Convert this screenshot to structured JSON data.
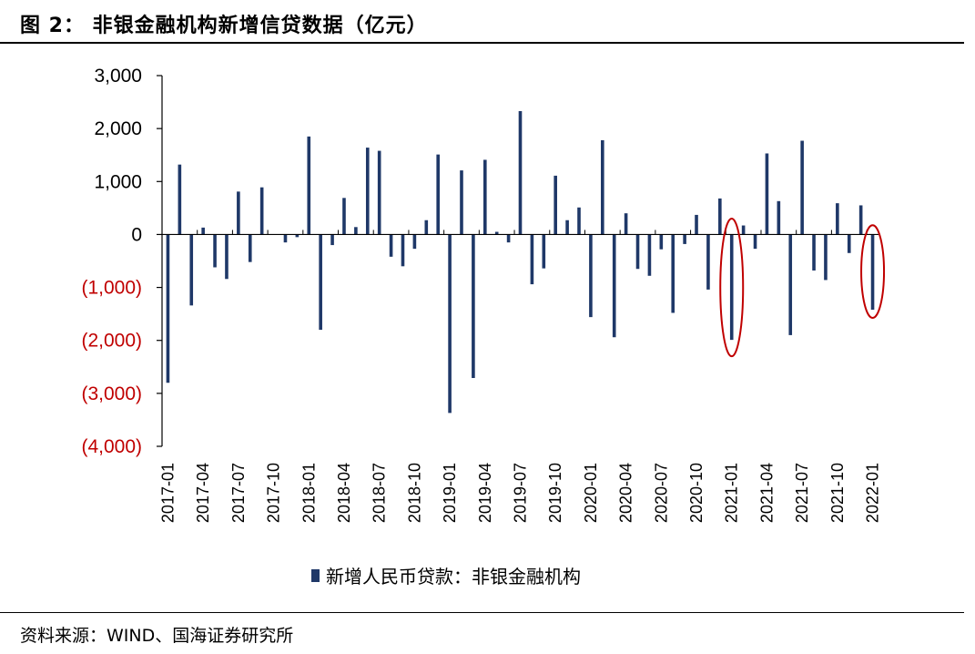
{
  "header": {
    "title": "图 2：  非银金融机构新增信贷数据（亿元）"
  },
  "footer": {
    "source": "资料来源：WIND、国海证券研究所"
  },
  "colors": {
    "bar": "#1f3868",
    "negative_label": "#c00000",
    "highlight": "#c00000",
    "axis": "#000000"
  },
  "chart_data": {
    "type": "bar",
    "title": "非银金融机构新增信贷数据（亿元）",
    "xlabel": "",
    "ylabel": "",
    "ylim": [
      -4000,
      3000
    ],
    "yticks": [
      3000,
      2000,
      1000,
      0,
      -1000,
      -2000,
      -3000,
      -4000
    ],
    "ytick_labels": [
      "3,000",
      "2,000",
      "1,000",
      "0",
      "(1,000)",
      "(2,000)",
      "(3,000)",
      "(4,000)"
    ],
    "xtick_labels": [
      "2017-01",
      "2017-04",
      "2017-07",
      "2017-10",
      "2018-01",
      "2018-04",
      "2018-07",
      "2018-10",
      "2019-01",
      "2019-04",
      "2019-07",
      "2019-10",
      "2020-01",
      "2020-04",
      "2020-07",
      "2020-10",
      "2021-01",
      "2021-04",
      "2021-07",
      "2021-10",
      "2022-01"
    ],
    "categories": [
      "2017-01",
      "2017-02",
      "2017-03",
      "2017-04",
      "2017-05",
      "2017-06",
      "2017-07",
      "2017-08",
      "2017-09",
      "2017-10",
      "2017-11",
      "2017-12",
      "2018-01",
      "2018-02",
      "2018-03",
      "2018-04",
      "2018-05",
      "2018-06",
      "2018-07",
      "2018-08",
      "2018-09",
      "2018-10",
      "2018-11",
      "2018-12",
      "2019-01",
      "2019-02",
      "2019-03",
      "2019-04",
      "2019-05",
      "2019-06",
      "2019-07",
      "2019-08",
      "2019-09",
      "2019-10",
      "2019-11",
      "2019-12",
      "2020-01",
      "2020-02",
      "2020-03",
      "2020-04",
      "2020-05",
      "2020-06",
      "2020-07",
      "2020-08",
      "2020-09",
      "2020-10",
      "2020-11",
      "2020-12",
      "2021-01",
      "2021-02",
      "2021-03",
      "2021-04",
      "2021-05",
      "2021-06",
      "2021-07",
      "2021-08",
      "2021-09",
      "2021-10",
      "2021-11",
      "2021-12",
      "2022-01"
    ],
    "series": [
      {
        "name": "新增人民币贷款：非银金融机构",
        "values": [
          -2800,
          1320,
          -1340,
          130,
          -620,
          -840,
          810,
          -520,
          890,
          0,
          -150,
          -50,
          1850,
          -1800,
          -200,
          690,
          140,
          1640,
          1580,
          -420,
          -600,
          -270,
          270,
          1510,
          -3370,
          1210,
          -2710,
          1410,
          50,
          -150,
          2330,
          -940,
          -640,
          1110,
          270,
          510,
          -1560,
          1780,
          -1940,
          400,
          -650,
          -780,
          -280,
          -1480,
          -180,
          370,
          -1040,
          680,
          -1990,
          170,
          -270,
          1530,
          630,
          -1900,
          1770,
          -680,
          -860,
          590,
          -350,
          550,
          -1420
        ]
      }
    ],
    "legend": {
      "label": "新增人民币贷款：非银金融机构",
      "position": "bottom"
    },
    "annotations": [
      {
        "type": "ellipse",
        "category": "2021-01",
        "y_center": -1000,
        "y_span": 2600
      },
      {
        "type": "ellipse",
        "category": "2022-01",
        "y_center": -700,
        "y_span": 1750
      }
    ]
  }
}
